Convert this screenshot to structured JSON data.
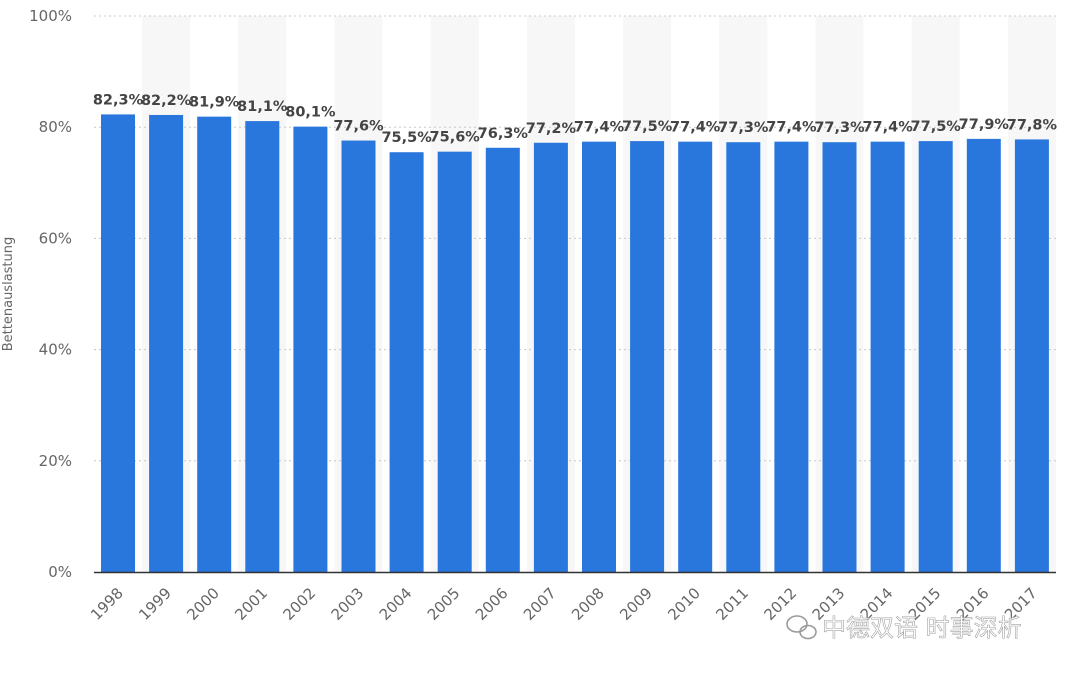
{
  "chart_data": {
    "type": "bar",
    "title": "",
    "xlabel": "",
    "ylabel": "Bettenauslastung",
    "ylim": [
      0,
      100
    ],
    "yticks": [
      0,
      20,
      40,
      60,
      80,
      100
    ],
    "ytick_labels": [
      "0%",
      "20%",
      "40%",
      "60%",
      "80%",
      "100%"
    ],
    "grid": true,
    "categories": [
      "1998",
      "1999",
      "2000",
      "2001",
      "2002",
      "2003",
      "2004",
      "2005",
      "2006",
      "2007",
      "2008",
      "2009",
      "2010",
      "2011",
      "2012",
      "2013",
      "2014",
      "2015",
      "2016",
      "2017"
    ],
    "values": [
      82.3,
      82.2,
      81.9,
      81.1,
      80.1,
      77.6,
      75.5,
      75.6,
      76.3,
      77.2,
      77.4,
      77.5,
      77.4,
      77.3,
      77.4,
      77.3,
      77.4,
      77.5,
      77.9,
      77.8
    ],
    "data_labels": [
      "82,3%",
      "82,2%",
      "81,9%",
      "81,1%",
      "80,1%",
      "77,6%",
      "75,5%",
      "75,6%",
      "76,3%",
      "77,2%",
      "77,4%",
      "77,5%",
      "77,4%",
      "77,3%",
      "77,4%",
      "77,3%",
      "77,4%",
      "77,5%",
      "77,9%",
      "77,8%"
    ],
    "bar_color": "#2976dd"
  },
  "watermark": {
    "text": "中德双语 时事深析",
    "icon": "wechat-icon"
  }
}
